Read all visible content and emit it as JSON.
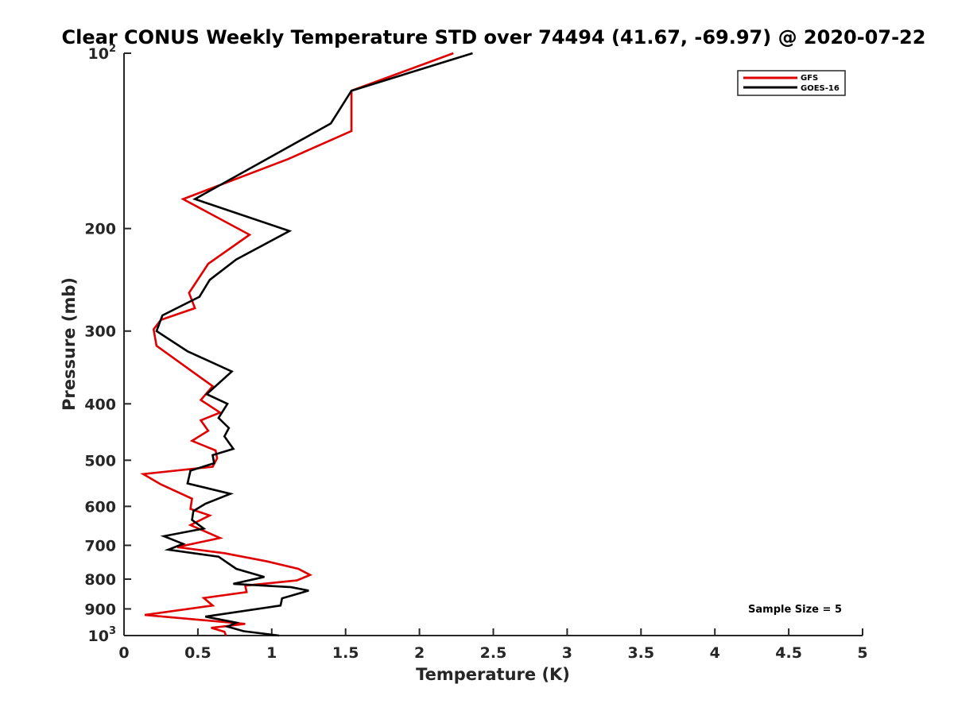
{
  "chart_data": {
    "type": "line",
    "title": "Clear CONUS Weekly Temperature STD over 74494 (41.67, -69.97) @ 2020-07-22",
    "xlabel": "Temperature (K)",
    "ylabel": "Pressure (mb)",
    "xlim": [
      0,
      5
    ],
    "ylim": [
      100,
      1000
    ],
    "yscale": "log",
    "y_reversed": true,
    "grid": false,
    "x_ticks": [
      0,
      0.5,
      1,
      1.5,
      2,
      2.5,
      3,
      3.5,
      4,
      4.5,
      5
    ],
    "x_tick_labels": [
      "0",
      "0.5",
      "1",
      "1.5",
      "2",
      "2.5",
      "3",
      "3.5",
      "4",
      "4.5",
      "5"
    ],
    "y_ticks": [
      {
        "value": 100,
        "base": "10",
        "exp": "2",
        "text": ""
      },
      {
        "value": 200,
        "base": "",
        "exp": "",
        "text": "200"
      },
      {
        "value": 300,
        "base": "",
        "exp": "",
        "text": "300"
      },
      {
        "value": 400,
        "base": "",
        "exp": "",
        "text": "400"
      },
      {
        "value": 500,
        "base": "",
        "exp": "",
        "text": "500"
      },
      {
        "value": 600,
        "base": "",
        "exp": "",
        "text": "600"
      },
      {
        "value": 700,
        "base": "",
        "exp": "",
        "text": "700"
      },
      {
        "value": 800,
        "base": "",
        "exp": "",
        "text": "800"
      },
      {
        "value": 900,
        "base": "",
        "exp": "",
        "text": "900"
      },
      {
        "value": 1000,
        "base": "10",
        "exp": "3",
        "text": ""
      }
    ],
    "legend_position": "top-right",
    "annotation": "Sample Size = 5",
    "series": [
      {
        "name": "GFS",
        "color": "#e00000",
        "x": [
          2.23,
          1.54,
          1.54,
          1.11,
          0.4,
          0.85,
          0.57,
          0.44,
          0.48,
          0.25,
          0.2,
          0.22,
          0.6,
          0.52,
          0.65,
          0.52,
          0.57,
          0.46,
          0.62,
          0.63,
          0.6,
          0.13,
          0.25,
          0.46,
          0.45,
          0.58,
          0.45,
          0.65,
          0.36,
          0.68,
          0.97,
          1.18,
          1.26,
          1.17,
          0.82,
          0.83,
          0.54,
          0.6,
          0.14,
          0.82,
          0.59,
          0.68,
          0.69
        ],
        "y": [
          100,
          116,
          136,
          152,
          178,
          205,
          230,
          258,
          274,
          287,
          298,
          318,
          373,
          394,
          414,
          427,
          445,
          463,
          481,
          496,
          513,
          528,
          550,
          582,
          606,
          622,
          646,
          680,
          705,
          722,
          746,
          768,
          787,
          804,
          821,
          842,
          862,
          888,
          922,
          955,
          970,
          985,
          1000
        ]
      },
      {
        "name": "GOES-16",
        "color": "#000000",
        "x": [
          2.36,
          1.54,
          1.4,
          0.48,
          1.12,
          0.76,
          0.58,
          0.51,
          0.26,
          0.22,
          0.43,
          0.73,
          0.56,
          0.7,
          0.64,
          0.71,
          0.68,
          0.74,
          0.6,
          0.61,
          0.45,
          0.43,
          0.72,
          0.55,
          0.47,
          0.46,
          0.54,
          0.27,
          0.4,
          0.3,
          0.64,
          0.76,
          0.95,
          0.74,
          1.13,
          1.25,
          1.07,
          1.06,
          0.55,
          0.76,
          0.7,
          0.81,
          1.05
        ],
        "y": [
          100,
          116,
          132,
          178,
          202,
          226,
          245,
          262,
          282,
          300,
          325,
          352,
          385,
          400,
          423,
          440,
          455,
          478,
          490,
          506,
          521,
          548,
          571,
          594,
          611,
          633,
          655,
          675,
          696,
          712,
          732,
          768,
          793,
          815,
          826,
          837,
          863,
          888,
          928,
          950,
          965,
          983,
          1000
        ]
      }
    ]
  }
}
